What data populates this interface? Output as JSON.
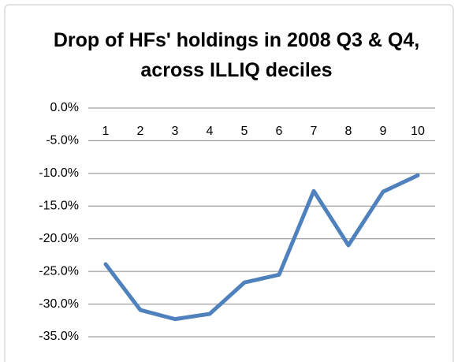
{
  "chart_data": {
    "type": "line",
    "title": "Drop of HFs' holdings in 2008 Q3 & Q4, across ILLIQ deciles",
    "categories": [
      "1",
      "2",
      "3",
      "4",
      "5",
      "6",
      "7",
      "8",
      "9",
      "10"
    ],
    "series": [
      {
        "color": "#4f81bd",
        "values": [
          -23.9,
          -30.9,
          -32.3,
          -31.5,
          -26.7,
          -25.5,
          -12.7,
          -21.0,
          -12.8,
          -10.3
        ]
      }
    ],
    "ylim": [
      -35,
      0
    ],
    "yticks": [
      {
        "value": 0,
        "label": "0.0%"
      },
      {
        "value": -5,
        "label": "-5.0%"
      },
      {
        "value": -10,
        "label": "-10.0%"
      },
      {
        "value": -15,
        "label": "-15.0%"
      },
      {
        "value": -20,
        "label": "-20.0%"
      },
      {
        "value": -25,
        "label": "-25.0%"
      },
      {
        "value": -30,
        "label": "-30.0%"
      },
      {
        "value": -35,
        "label": "-35.0%"
      }
    ],
    "grid": true
  }
}
